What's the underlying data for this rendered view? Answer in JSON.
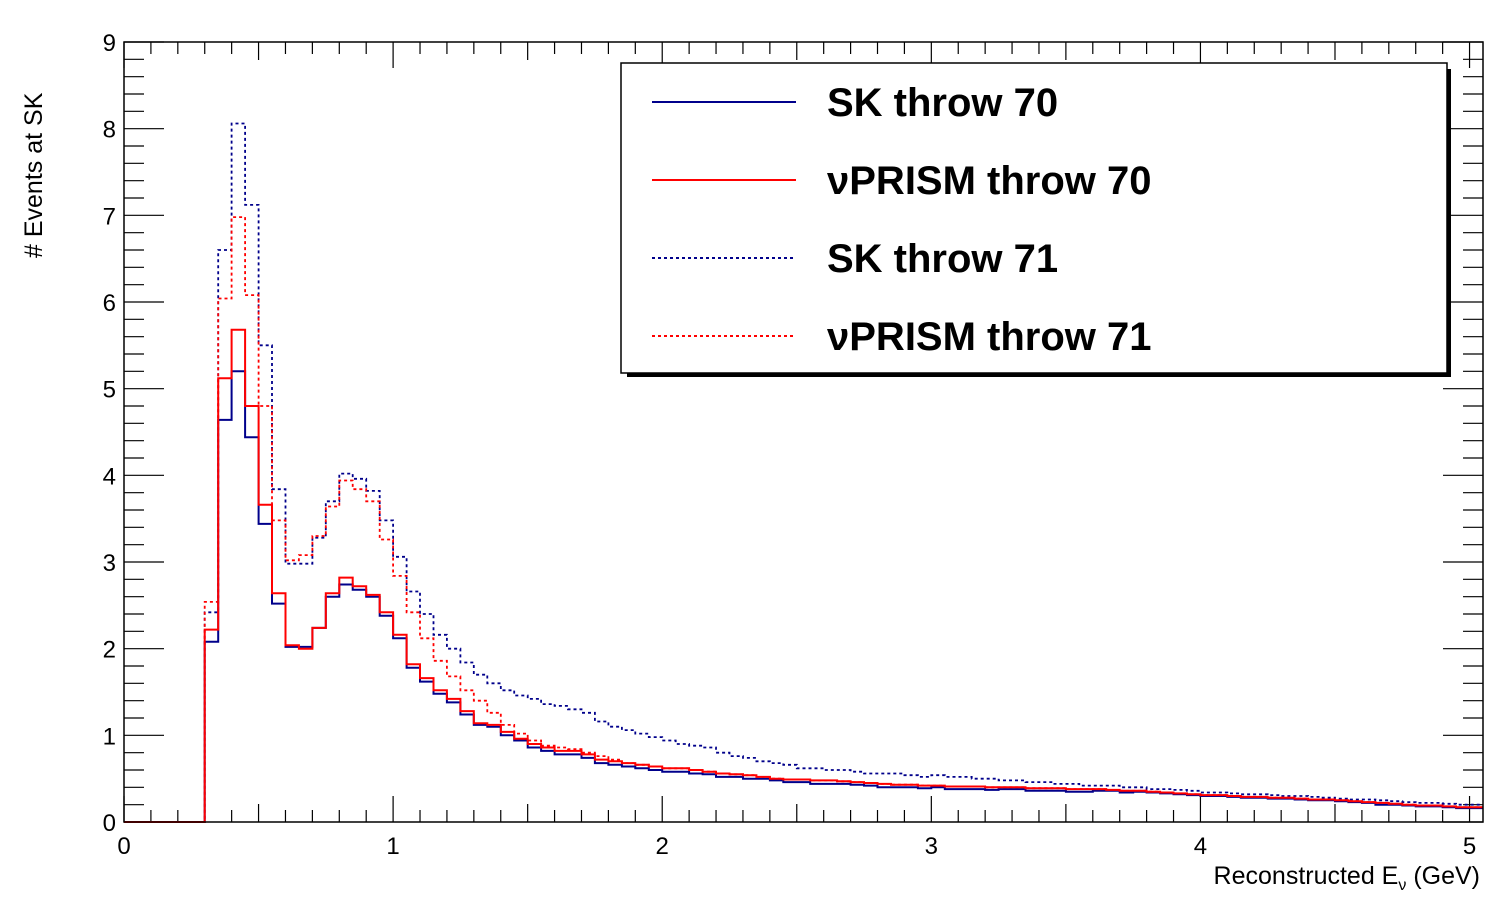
{
  "chart_data": {
    "type": "line",
    "style": "step-histogram",
    "ylabel": "# Events at SK",
    "xlabel": "Reconstructed E",
    "xlabel_sub": "ν",
    "xlabel_unit": " (GeV)",
    "xlim": [
      0,
      5.05
    ],
    "ylim": [
      0,
      9
    ],
    "xticks": [
      0,
      1,
      2,
      3,
      4,
      5
    ],
    "yticks": [
      0,
      1,
      2,
      3,
      4,
      5,
      6,
      7,
      8,
      9
    ],
    "bin_width": 0.05,
    "legend_position": "top-right",
    "series": [
      {
        "name": "SK throw 70",
        "color": "#00008b",
        "dash": "solid",
        "values": [
          0,
          0,
          0,
          0,
          0,
          0,
          2.08,
          4.64,
          5.2,
          4.44,
          3.44,
          2.52,
          2.02,
          2.02,
          2.24,
          2.6,
          2.74,
          2.68,
          2.6,
          2.38,
          2.12,
          1.78,
          1.62,
          1.48,
          1.38,
          1.24,
          1.12,
          1.1,
          1.0,
          0.94,
          0.86,
          0.82,
          0.78,
          0.78,
          0.74,
          0.68,
          0.66,
          0.64,
          0.62,
          0.6,
          0.58,
          0.58,
          0.56,
          0.55,
          0.52,
          0.52,
          0.5,
          0.5,
          0.48,
          0.46,
          0.46,
          0.44,
          0.44,
          0.44,
          0.43,
          0.42,
          0.4,
          0.4,
          0.4,
          0.39,
          0.4,
          0.38,
          0.38,
          0.38,
          0.37,
          0.38,
          0.38,
          0.36,
          0.36,
          0.36,
          0.35,
          0.35,
          0.36,
          0.36,
          0.34,
          0.35,
          0.34,
          0.33,
          0.32,
          0.31,
          0.3,
          0.3,
          0.29,
          0.28,
          0.28,
          0.27,
          0.27,
          0.26,
          0.25,
          0.25,
          0.24,
          0.23,
          0.22,
          0.2,
          0.2,
          0.19,
          0.18,
          0.18,
          0.17,
          0.16,
          0.16
        ]
      },
      {
        "name": "νPRISM throw 70",
        "color": "#ff0000",
        "dash": "solid",
        "values": [
          0,
          0,
          0,
          0,
          0,
          0,
          2.22,
          5.12,
          5.68,
          4.8,
          3.66,
          2.64,
          2.04,
          2.0,
          2.24,
          2.64,
          2.82,
          2.72,
          2.62,
          2.42,
          2.16,
          1.82,
          1.66,
          1.52,
          1.42,
          1.28,
          1.14,
          1.12,
          1.04,
          0.96,
          0.9,
          0.86,
          0.82,
          0.82,
          0.78,
          0.72,
          0.7,
          0.68,
          0.66,
          0.64,
          0.62,
          0.62,
          0.6,
          0.58,
          0.56,
          0.55,
          0.54,
          0.52,
          0.5,
          0.49,
          0.49,
          0.48,
          0.48,
          0.47,
          0.46,
          0.45,
          0.44,
          0.43,
          0.43,
          0.42,
          0.42,
          0.41,
          0.41,
          0.41,
          0.4,
          0.4,
          0.4,
          0.39,
          0.39,
          0.39,
          0.38,
          0.38,
          0.38,
          0.37,
          0.36,
          0.36,
          0.35,
          0.34,
          0.33,
          0.32,
          0.31,
          0.31,
          0.3,
          0.29,
          0.29,
          0.28,
          0.28,
          0.27,
          0.26,
          0.26,
          0.25,
          0.24,
          0.23,
          0.22,
          0.21,
          0.2,
          0.19,
          0.19,
          0.18,
          0.17,
          0.17
        ]
      },
      {
        "name": "SK throw 71",
        "color": "#00008b",
        "dash": "dotted",
        "values": [
          0,
          0,
          0,
          0,
          0,
          0,
          2.42,
          6.6,
          8.06,
          7.12,
          5.5,
          3.84,
          2.98,
          2.98,
          3.28,
          3.7,
          4.02,
          3.96,
          3.82,
          3.48,
          3.06,
          2.66,
          2.4,
          2.16,
          2.0,
          1.84,
          1.7,
          1.6,
          1.52,
          1.46,
          1.42,
          1.36,
          1.34,
          1.3,
          1.26,
          1.16,
          1.1,
          1.06,
          1.02,
          0.98,
          0.94,
          0.9,
          0.88,
          0.86,
          0.8,
          0.76,
          0.74,
          0.7,
          0.68,
          0.66,
          0.62,
          0.62,
          0.6,
          0.6,
          0.58,
          0.56,
          0.56,
          0.56,
          0.54,
          0.52,
          0.54,
          0.52,
          0.52,
          0.5,
          0.5,
          0.48,
          0.48,
          0.46,
          0.46,
          0.44,
          0.44,
          0.42,
          0.42,
          0.42,
          0.4,
          0.4,
          0.38,
          0.38,
          0.37,
          0.36,
          0.34,
          0.34,
          0.33,
          0.32,
          0.32,
          0.31,
          0.3,
          0.3,
          0.29,
          0.28,
          0.27,
          0.26,
          0.26,
          0.25,
          0.24,
          0.23,
          0.22,
          0.22,
          0.21,
          0.2,
          0.2
        ]
      },
      {
        "name": "νPRISM throw 71",
        "color": "#ff0000",
        "dash": "dotted",
        "values": [
          0,
          0,
          0,
          0,
          0,
          0,
          2.54,
          6.04,
          6.98,
          6.08,
          4.8,
          3.48,
          3.02,
          3.08,
          3.3,
          3.64,
          3.94,
          3.84,
          3.7,
          3.26,
          2.84,
          2.42,
          2.12,
          1.86,
          1.68,
          1.52,
          1.4,
          1.26,
          1.12,
          1.02,
          0.94,
          0.88,
          0.86,
          0.84,
          0.8,
          0.76,
          0.72,
          0.68,
          0.66,
          0.64,
          0.62,
          0.62,
          0.6,
          0.58,
          0.56,
          0.55,
          0.54,
          0.52,
          0.5,
          0.49,
          0.49,
          0.48,
          0.48,
          0.47,
          0.46,
          0.45,
          0.44,
          0.43,
          0.43,
          0.42,
          0.42,
          0.41,
          0.41,
          0.41,
          0.4,
          0.4,
          0.4,
          0.39,
          0.39,
          0.39,
          0.38,
          0.38,
          0.38,
          0.37,
          0.36,
          0.36,
          0.35,
          0.34,
          0.33,
          0.32,
          0.31,
          0.31,
          0.3,
          0.29,
          0.29,
          0.28,
          0.28,
          0.27,
          0.26,
          0.26,
          0.25,
          0.24,
          0.23,
          0.22,
          0.21,
          0.2,
          0.19,
          0.19,
          0.18,
          0.17,
          0.17
        ]
      }
    ]
  }
}
